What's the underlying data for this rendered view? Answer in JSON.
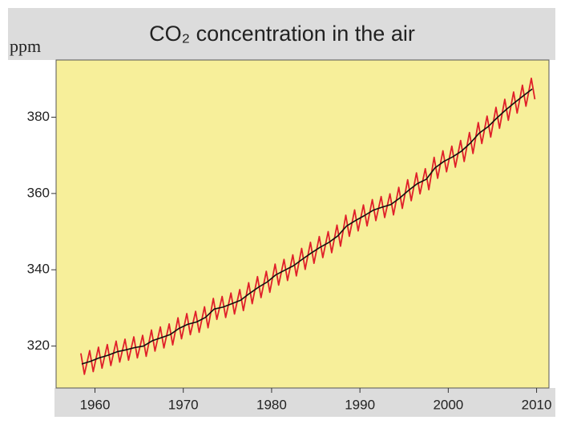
{
  "chart_data": {
    "type": "line",
    "title": "CO₂ concentration in the air",
    "y_label": "ppm",
    "xlim": [
      1955.6,
      2011.4
    ],
    "ylim": [
      309,
      395
    ],
    "xticks": [
      1960,
      1970,
      1980,
      1990,
      2000,
      2010
    ],
    "yticks": [
      320,
      340,
      360,
      380
    ],
    "series": [
      {
        "color": "#e0202a",
        "x": [
          1958.4,
          1958.8,
          1959.4,
          1959.8,
          1960.4,
          1960.8,
          1961.4,
          1961.8,
          1962.4,
          1962.8,
          1963.4,
          1963.8,
          1964.4,
          1964.8,
          1965.4,
          1965.8,
          1966.4,
          1966.8,
          1967.4,
          1967.8,
          1968.4,
          1968.8,
          1969.4,
          1969.8,
          1970.4,
          1970.8,
          1971.4,
          1971.8,
          1972.4,
          1972.8,
          1973.4,
          1973.8,
          1974.4,
          1974.8,
          1975.4,
          1975.8,
          1976.4,
          1976.8,
          1977.4,
          1977.8,
          1978.4,
          1978.8,
          1979.4,
          1979.8,
          1980.4,
          1980.8,
          1981.4,
          1981.8,
          1982.4,
          1982.8,
          1983.4,
          1983.8,
          1984.4,
          1984.8,
          1985.4,
          1985.8,
          1986.4,
          1986.8,
          1987.4,
          1987.8,
          1988.4,
          1988.8,
          1989.4,
          1989.8,
          1990.4,
          1990.8,
          1991.4,
          1991.8,
          1992.4,
          1992.8,
          1993.4,
          1993.8,
          1994.4,
          1994.8,
          1995.4,
          1995.8,
          1996.4,
          1996.8,
          1997.4,
          1997.8,
          1998.4,
          1998.8,
          1999.4,
          1999.8,
          2000.4,
          2000.8,
          2001.4,
          2001.8,
          2002.4,
          2002.8,
          2003.4,
          2003.8,
          2004.4,
          2004.8,
          2005.4,
          2005.8,
          2006.4,
          2006.8,
          2007.4,
          2007.8,
          2008.4,
          2008.8,
          2009.4,
          2009.8
        ],
        "values": [
          318.1,
          312.6,
          318.8,
          313.3,
          319.7,
          314.2,
          320.4,
          314.9,
          321.3,
          315.8,
          321.8,
          316.3,
          322.4,
          316.9,
          322.8,
          317.3,
          324.2,
          318.7,
          325.0,
          319.5,
          325.8,
          320.3,
          327.4,
          321.9,
          328.5,
          323.0,
          329.1,
          323.6,
          330.3,
          324.8,
          332.5,
          327.0,
          333.0,
          327.5,
          333.9,
          328.4,
          334.8,
          329.3,
          336.6,
          331.1,
          338.2,
          332.7,
          339.6,
          334.1,
          341.5,
          336.0,
          342.7,
          337.2,
          343.9,
          338.4,
          345.6,
          340.1,
          347.2,
          341.7,
          348.7,
          343.2,
          350.0,
          344.5,
          351.7,
          346.2,
          354.3,
          348.8,
          355.7,
          350.2,
          357.0,
          351.5,
          358.4,
          352.9,
          359.2,
          353.7,
          359.9,
          354.4,
          361.6,
          356.1,
          363.6,
          358.1,
          365.4,
          359.9,
          366.5,
          361.0,
          369.5,
          364.0,
          371.2,
          365.7,
          372.4,
          366.9,
          373.9,
          368.4,
          376.0,
          370.5,
          378.6,
          373.1,
          380.3,
          374.8,
          382.6,
          377.1,
          384.7,
          379.2,
          386.6,
          381.1,
          388.4,
          382.9,
          390.2,
          384.7
        ]
      },
      {
        "color": "#111111",
        "x": [
          1958.5,
          1959.5,
          1960.5,
          1961.5,
          1962.5,
          1963.5,
          1964.5,
          1965.5,
          1966.5,
          1967.5,
          1968.5,
          1969.5,
          1970.5,
          1971.5,
          1972.5,
          1973.5,
          1974.5,
          1975.5,
          1976.5,
          1977.5,
          1978.5,
          1979.5,
          1980.5,
          1981.5,
          1982.5,
          1983.5,
          1984.5,
          1985.5,
          1986.5,
          1987.5,
          1988.5,
          1989.5,
          1990.5,
          1991.5,
          1992.5,
          1993.5,
          1994.5,
          1995.5,
          1996.5,
          1997.5,
          1998.5,
          1999.5,
          2000.5,
          2001.5,
          2002.5,
          2003.5,
          2004.5,
          2005.5,
          2006.5,
          2007.5,
          2008.5,
          2009.5
        ],
        "values": [
          315.3,
          316.0,
          316.9,
          317.6,
          318.5,
          319.0,
          319.6,
          320.0,
          321.4,
          322.2,
          323.0,
          324.6,
          325.7,
          326.3,
          327.5,
          329.7,
          330.2,
          331.1,
          332.0,
          333.8,
          335.4,
          336.8,
          338.7,
          339.9,
          341.1,
          342.8,
          344.4,
          345.9,
          347.2,
          348.9,
          351.5,
          352.9,
          354.2,
          355.6,
          356.4,
          357.1,
          358.8,
          360.8,
          362.6,
          363.7,
          366.7,
          368.4,
          369.6,
          371.1,
          373.2,
          375.8,
          377.5,
          379.8,
          381.9,
          383.8,
          385.6,
          387.4
        ]
      }
    ]
  }
}
